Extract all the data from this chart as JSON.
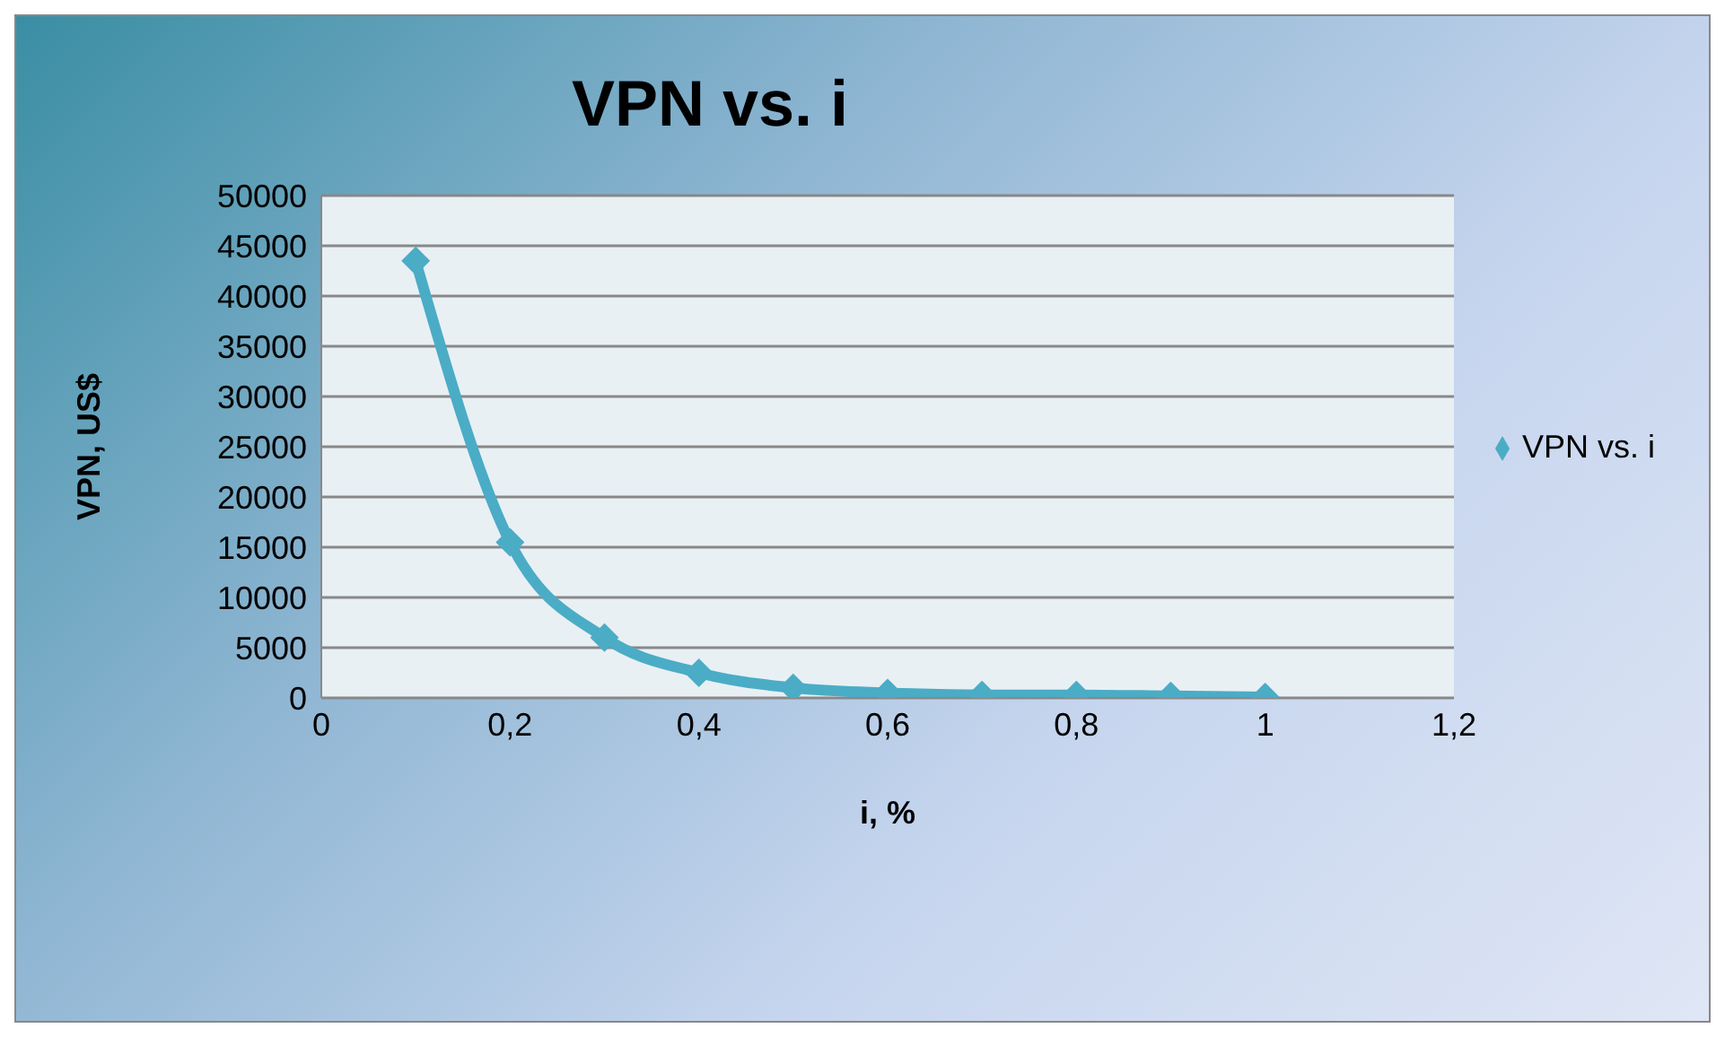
{
  "chart_data": {
    "type": "line",
    "title": "VPN vs. i",
    "xlabel": "i, %",
    "ylabel": "VPN, US$",
    "x": [
      0.1,
      0.2,
      0.3,
      0.4,
      0.5,
      0.6,
      0.7,
      0.8,
      0.9,
      1
    ],
    "series": [
      {
        "name": "VPN vs. i",
        "color": "#4bacc6",
        "values": [
          43500,
          15500,
          6000,
          2500,
          1000,
          500,
          300,
          300,
          200,
          100
        ]
      }
    ],
    "xlim": [
      0,
      1.2
    ],
    "xticks": [
      {
        "value": 0,
        "label": "0"
      },
      {
        "value": 0.2,
        "label": "0,2"
      },
      {
        "value": 0.4,
        "label": "0,4"
      },
      {
        "value": 0.6,
        "label": "0,6"
      },
      {
        "value": 0.8,
        "label": "0,8"
      },
      {
        "value": 1,
        "label": "1"
      },
      {
        "value": 1.2,
        "label": "1,2"
      }
    ],
    "ylim": [
      0,
      50000
    ],
    "yticks": [
      0,
      5000,
      10000,
      15000,
      20000,
      25000,
      30000,
      35000,
      40000,
      45000,
      50000
    ],
    "grid": "y",
    "legend": "right",
    "marker": "diamond",
    "line_style": "solid"
  }
}
